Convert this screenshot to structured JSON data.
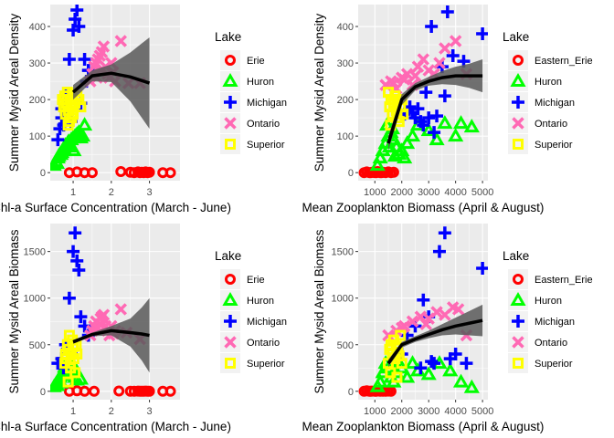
{
  "legend_title": "Lake",
  "colors": {
    "Erie": "#FF0000",
    "Eastern_Erie": "#FF0000",
    "Huron": "#00FF00",
    "Michigan": "#0000FF",
    "Ontario": "#FF69B4",
    "Superior": "#FFFF00",
    "panel_bg": "#EBEBEB",
    "grid": "#FFFFFF",
    "smooth_line": "#000000",
    "ribbon": "#595959"
  },
  "shapes": {
    "Erie": "circle-open",
    "Eastern_Erie": "circle-open",
    "Huron": "triangle-open",
    "Michigan": "plus",
    "Ontario": "x",
    "Superior": "square-open"
  },
  "chart_data": [
    {
      "type": "scatter",
      "xlabel": "Chl-a Surface Concentration (March - June)",
      "ylabel": "Summer Mysid Areal Density",
      "xlim": [
        0.4,
        3.8
      ],
      "ylim": [
        -22,
        460
      ],
      "xticks": [
        1,
        2,
        3
      ],
      "yticks": [
        0,
        100,
        200,
        300,
        400
      ],
      "legend": [
        "Erie",
        "Huron",
        "Michigan",
        "Ontario",
        "Superior"
      ],
      "smooth": {
        "x": [
          1.0,
          1.5,
          2.0,
          2.5,
          2.8,
          3.0
        ],
        "y": [
          220,
          265,
          272,
          262,
          252,
          245
        ],
        "se_low": [
          200,
          250,
          248,
          195,
          150,
          120
        ],
        "se_high": [
          240,
          280,
          296,
          329,
          354,
          370
        ]
      },
      "series": [
        {
          "name": "Erie",
          "x": [
            0.9,
            1.1,
            1.3,
            1.5,
            2.25,
            2.5,
            2.6,
            2.7,
            2.75,
            2.8,
            2.85,
            2.9,
            2.95,
            3.0,
            3.35,
            3.55
          ],
          "y": [
            0,
            2,
            0,
            0,
            3,
            1,
            0,
            2,
            0,
            1,
            0,
            2,
            0,
            1,
            0,
            0
          ]
        },
        {
          "name": "Huron",
          "x": [
            0.5,
            0.55,
            0.6,
            0.62,
            0.65,
            0.7,
            0.72,
            0.75,
            0.78,
            0.8,
            0.85,
            0.88,
            0.9,
            0.95,
            1.0,
            1.05,
            1.1,
            1.15,
            1.2,
            1.25,
            1.3,
            0.58,
            0.68,
            0.92,
            1.02
          ],
          "y": [
            20,
            30,
            40,
            45,
            50,
            55,
            60,
            65,
            70,
            75,
            80,
            85,
            80,
            90,
            95,
            100,
            105,
            110,
            95,
            100,
            130,
            25,
            50,
            70,
            60
          ]
        },
        {
          "name": "Michigan",
          "x": [
            0.6,
            0.65,
            0.7,
            0.75,
            0.8,
            0.85,
            0.9,
            0.95,
            1.0,
            1.05,
            1.1,
            1.15,
            1.2,
            1.3,
            1.35,
            1.4,
            0.8,
            0.7
          ],
          "y": [
            90,
            120,
            150,
            130,
            180,
            160,
            310,
            140,
            390,
            420,
            445,
            400,
            190,
            310,
            250,
            280,
            210,
            175
          ]
        },
        {
          "name": "Ontario",
          "x": [
            1.45,
            1.5,
            1.55,
            1.6,
            1.65,
            1.7,
            1.75,
            1.8,
            1.85,
            1.9,
            1.95,
            2.0,
            2.05,
            2.1,
            2.25,
            2.45,
            2.75,
            1.72,
            1.62
          ],
          "y": [
            250,
            270,
            290,
            300,
            310,
            320,
            330,
            345,
            290,
            270,
            260,
            300,
            275,
            250,
            360,
            245,
            245,
            280,
            260
          ]
        },
        {
          "name": "Superior",
          "x": [
            0.72,
            0.75,
            0.78,
            0.8,
            0.82,
            0.85,
            0.88,
            0.9,
            0.92,
            0.95,
            0.98,
            1.0,
            1.05,
            1.1,
            1.15,
            1.2,
            0.87,
            0.96
          ],
          "y": [
            200,
            180,
            210,
            160,
            190,
            220,
            170,
            140,
            200,
            180,
            215,
            160,
            190,
            210,
            200,
            180,
            130,
            150
          ]
        }
      ]
    },
    {
      "type": "scatter",
      "xlabel": "Mean Zooplankton Biomass (April & August)",
      "ylabel": "Summer Mysid Areal Density",
      "xlim": [
        380,
        5200
      ],
      "ylim": [
        -22,
        460
      ],
      "xticks": [
        1000,
        2000,
        3000,
        4000,
        5000
      ],
      "yticks": [
        0,
        100,
        200,
        300,
        400
      ],
      "legend": [
        "Eastern_Erie",
        "Huron",
        "Michigan",
        "Ontario",
        "Superior"
      ],
      "smooth": {
        "x": [
          1500,
          2000,
          2500,
          3000,
          3500,
          4000,
          4500,
          5000
        ],
        "y": [
          80,
          200,
          235,
          250,
          260,
          265,
          265,
          265
        ],
        "se_low": [
          60,
          185,
          225,
          238,
          242,
          240,
          232,
          220
        ],
        "se_high": [
          100,
          215,
          245,
          262,
          278,
          290,
          298,
          310
        ]
      },
      "series": [
        {
          "name": "Eastern_Erie",
          "x": [
            600,
            700,
            800,
            900,
            1000,
            1100,
            1200,
            1300,
            1400,
            1500,
            1600,
            1700,
            850,
            1050,
            1250
          ],
          "y": [
            0,
            2,
            0,
            1,
            0,
            3,
            0,
            1,
            0,
            2,
            0,
            1,
            0,
            0,
            0
          ]
        },
        {
          "name": "Huron",
          "x": [
            1100,
            1200,
            1300,
            1400,
            1500,
            1600,
            1700,
            1800,
            1900,
            2000,
            2100,
            2200,
            2400,
            2600,
            3000,
            3300,
            3600,
            4000,
            4200,
            4600,
            1450,
            1650,
            1550,
            1750
          ],
          "y": [
            20,
            40,
            60,
            80,
            100,
            110,
            90,
            70,
            50,
            60,
            40,
            80,
            100,
            130,
            115,
            90,
            135,
            100,
            135,
            125,
            130,
            120,
            70,
            45
          ]
        },
        {
          "name": "Michigan",
          "x": [
            2100,
            2300,
            2500,
            2700,
            2900,
            3100,
            3300,
            3500,
            3700,
            3900,
            4300,
            5000,
            2800,
            3000,
            3200,
            2400,
            2600,
            3600
          ],
          "y": [
            160,
            180,
            150,
            140,
            220,
            400,
            155,
            290,
            440,
            320,
            305,
            380,
            130,
            150,
            110,
            165,
            175,
            210
          ]
        },
        {
          "name": "Ontario",
          "x": [
            1400,
            1600,
            1800,
            2000,
            2200,
            2400,
            2600,
            2800,
            3000,
            3200,
            3400,
            3600,
            4000,
            4400,
            1700,
            2100,
            2500
          ],
          "y": [
            240,
            250,
            230,
            260,
            270,
            240,
            290,
            310,
            280,
            270,
            300,
            340,
            360,
            270,
            245,
            255,
            265
          ]
        },
        {
          "name": "Superior",
          "x": [
            1500,
            1550,
            1600,
            1650,
            1700,
            1750,
            1800,
            1850,
            1900,
            1950,
            2000,
            2050,
            1580,
            1820
          ],
          "y": [
            220,
            180,
            200,
            160,
            190,
            210,
            170,
            200,
            140,
            180,
            200,
            160,
            130,
            150
          ]
        }
      ]
    },
    {
      "type": "scatter",
      "xlabel": "Chl-a Surface Concentration (March - June)",
      "ylabel": "Summer Mysid Areal Biomass",
      "xlim": [
        0.4,
        3.8
      ],
      "ylim": [
        -90,
        1800
      ],
      "xticks": [
        1,
        2,
        3
      ],
      "yticks": [
        0,
        500,
        1000,
        1500
      ],
      "legend": [
        "Erie",
        "Huron",
        "Michigan",
        "Ontario",
        "Superior"
      ],
      "smooth": {
        "x": [
          1.0,
          1.5,
          2.0,
          2.5,
          2.8,
          3.0
        ],
        "y": [
          530,
          610,
          650,
          630,
          615,
          600
        ],
        "se_low": [
          510,
          590,
          600,
          480,
          330,
          200
        ],
        "se_high": [
          550,
          630,
          700,
          780,
          900,
          1000
        ]
      },
      "series": [
        {
          "name": "Erie",
          "x": [
            0.9,
            1.1,
            1.3,
            1.55,
            2.2,
            2.5,
            2.6,
            2.7,
            2.75,
            2.8,
            2.85,
            2.9,
            2.95,
            3.0,
            3.35,
            3.55
          ],
          "y": [
            0,
            5,
            0,
            0,
            3,
            1,
            0,
            2,
            0,
            1,
            0,
            2,
            0,
            1,
            0,
            0
          ]
        },
        {
          "name": "Huron",
          "x": [
            0.5,
            0.55,
            0.6,
            0.62,
            0.65,
            0.7,
            0.75,
            0.8,
            0.85,
            0.9,
            0.95,
            1.0,
            1.05,
            1.1,
            1.2,
            0.58,
            0.68,
            0.78
          ],
          "y": [
            50,
            80,
            100,
            120,
            150,
            170,
            200,
            220,
            180,
            210,
            250,
            280,
            150,
            120,
            130,
            60,
            90,
            260
          ]
        },
        {
          "name": "Michigan",
          "x": [
            0.6,
            0.7,
            0.8,
            0.9,
            1.0,
            1.05,
            1.1,
            1.15,
            1.2,
            1.3,
            1.4,
            0.85,
            0.95,
            0.75
          ],
          "y": [
            300,
            350,
            500,
            1000,
            1500,
            1700,
            1400,
            1300,
            800,
            700,
            600,
            450,
            400,
            250
          ]
        },
        {
          "name": "Ontario",
          "x": [
            1.45,
            1.5,
            1.55,
            1.6,
            1.65,
            1.7,
            1.75,
            1.8,
            1.85,
            1.9,
            1.95,
            2.0,
            2.05,
            2.1,
            2.25,
            2.4,
            2.75,
            1.72
          ],
          "y": [
            600,
            650,
            700,
            750,
            680,
            720,
            800,
            820,
            700,
            650,
            600,
            700,
            620,
            650,
            880,
            630,
            560,
            780
          ]
        },
        {
          "name": "Superior",
          "x": [
            0.78,
            0.8,
            0.82,
            0.85,
            0.88,
            0.9,
            0.92,
            0.95,
            0.98,
            1.0,
            1.02,
            1.05,
            1.08,
            1.1,
            0.87,
            0.93
          ],
          "y": [
            300,
            400,
            350,
            500,
            450,
            600,
            300,
            400,
            550,
            480,
            350,
            200,
            500,
            400,
            100,
            250
          ]
        }
      ]
    },
    {
      "type": "scatter",
      "xlabel": "Mean Zooplankton Biomass (April & August)",
      "ylabel": "Summer Mysid Areal Biomass",
      "xlim": [
        380,
        5200
      ],
      "ylim": [
        -90,
        1800
      ],
      "xticks": [
        1000,
        2000,
        3000,
        4000,
        5000
      ],
      "yticks": [
        0,
        500,
        1000,
        1500
      ],
      "legend": [
        "Eastern_Erie",
        "Huron",
        "Michigan",
        "Ontario",
        "Superior"
      ],
      "smooth": {
        "x": [
          1500,
          2000,
          2500,
          3000,
          3500,
          4000,
          4500,
          5000
        ],
        "y": [
          300,
          500,
          560,
          610,
          660,
          700,
          730,
          760
        ],
        "se_low": [
          260,
          470,
          530,
          570,
          600,
          610,
          600,
          590
        ],
        "se_high": [
          340,
          530,
          590,
          650,
          720,
          790,
          860,
          930
        ]
      },
      "series": [
        {
          "name": "Eastern_Erie",
          "x": [
            600,
            700,
            800,
            900,
            1000,
            1100,
            1200,
            1300,
            1400,
            1500,
            1600,
            850,
            1050
          ],
          "y": [
            0,
            5,
            0,
            2,
            0,
            3,
            0,
            1,
            0,
            2,
            0,
            0,
            0
          ]
        },
        {
          "name": "Huron",
          "x": [
            1100,
            1200,
            1300,
            1400,
            1500,
            1600,
            1700,
            1800,
            1900,
            2000,
            2200,
            2400,
            2600,
            3000,
            3400,
            3800,
            4200,
            4600
          ],
          "y": [
            50,
            100,
            200,
            300,
            250,
            150,
            100,
            200,
            300,
            250,
            150,
            300,
            220,
            180,
            300,
            220,
            100,
            40
          ]
        },
        {
          "name": "Michigan",
          "x": [
            2000,
            2200,
            2500,
            2800,
            3000,
            3200,
            3400,
            3600,
            3800,
            4000,
            4400,
            5000,
            2700,
            3100
          ],
          "y": [
            400,
            600,
            700,
            980,
            800,
            300,
            1500,
            1700,
            350,
            400,
            300,
            1320,
            250,
            320
          ]
        },
        {
          "name": "Ontario",
          "x": [
            1500,
            1800,
            2100,
            2400,
            2700,
            3000,
            3300,
            3600,
            3900,
            4100,
            4400,
            2000,
            2900
          ],
          "y": [
            600,
            650,
            700,
            750,
            800,
            780,
            850,
            820,
            900,
            880,
            600,
            680,
            720
          ]
        },
        {
          "name": "Superior",
          "x": [
            1500,
            1550,
            1600,
            1650,
            1700,
            1750,
            1800,
            1850,
            1900,
            1950,
            2000,
            1580,
            1820
          ],
          "y": [
            300,
            450,
            500,
            400,
            550,
            350,
            480,
            420,
            380,
            600,
            300,
            200,
            150
          ]
        }
      ]
    }
  ]
}
